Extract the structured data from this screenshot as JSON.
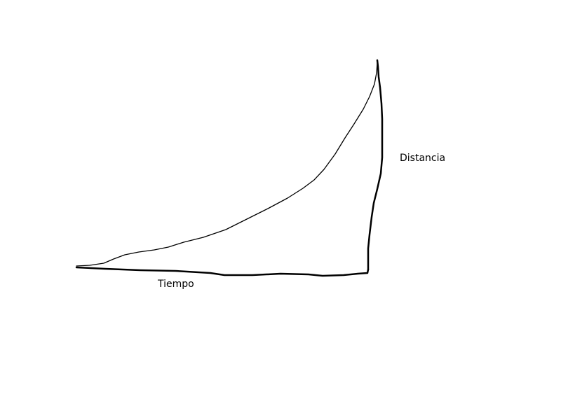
{
  "labels": {
    "vertical_axis": "Distancia",
    "horizontal_axis": "Tiempo"
  },
  "colors": {
    "background": "#ffffff",
    "ink": "#000000"
  }
}
